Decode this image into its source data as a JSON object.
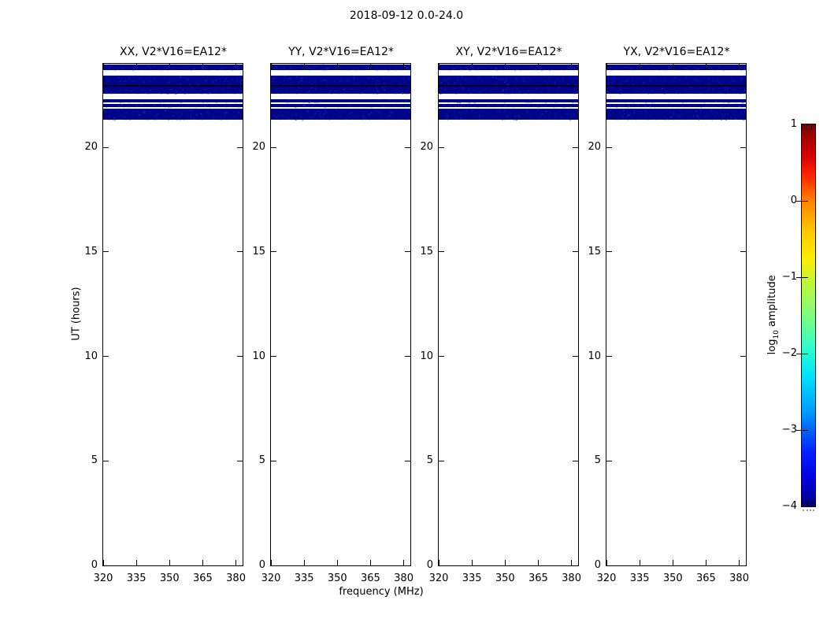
{
  "figure": {
    "title": "2018-09-12 0.0-24.0",
    "xlabel": "frequency (MHz)",
    "ylabel": "UT (hours)",
    "colorbar_label": {
      "pre": "log",
      "sub": "10",
      "post": " amplitude"
    }
  },
  "panels": [
    {
      "title": "XX, V2*V16=EA12*"
    },
    {
      "title": "YY, V2*V16=EA12*"
    },
    {
      "title": "XY, V2*V16=EA12*"
    },
    {
      "title": "YX, V2*V16=EA12*"
    }
  ],
  "axes": {
    "x_ticks": [
      320,
      335,
      350,
      365,
      380
    ],
    "x_range": [
      320,
      383
    ],
    "y_ticks": [
      0,
      5,
      10,
      15,
      20
    ],
    "y_range": [
      0,
      24
    ]
  },
  "colorbar": {
    "tick_labels": [
      "1",
      "0",
      "−1",
      "−2",
      "−3",
      "−4"
    ],
    "tick_values": [
      1,
      0,
      -1,
      -2,
      -3,
      -4
    ],
    "range": [
      -4,
      1
    ],
    "colormap": "jet"
  },
  "chart_data": {
    "type": "heatmap",
    "title": "2018-09-12 0.0-24.0",
    "subplots": [
      {
        "title": "XX, V2*V16=EA12*",
        "polarization": "XX"
      },
      {
        "title": "YY, V2*V16=EA12*",
        "polarization": "YY"
      },
      {
        "title": "XY, V2*V16=EA12*",
        "polarization": "XY"
      },
      {
        "title": "YX, V2*V16=EA12*",
        "polarization": "YX"
      }
    ],
    "xlabel": "frequency (MHz)",
    "ylabel": "UT (hours)",
    "x_ticks_mhz": [
      320,
      335,
      350,
      365,
      380
    ],
    "x_range_mhz": [
      320,
      383
    ],
    "y_range_hours": [
      0,
      24
    ],
    "colorbar": {
      "label": "log10 amplitude",
      "ticks": [
        1,
        0,
        -1,
        -2,
        -3,
        -4
      ],
      "range": [
        -4,
        1
      ],
      "colormap": "jet"
    },
    "data_description": "Dark navy horizontal bands (log10 amplitude near -4) spanning the full frequency range in all four panels between UT ~21.3 and ~24.0, separated by white gaps; remainder of each panel is blank (no data).",
    "data_bands_ut": [
      [
        23.7,
        23.98
      ],
      [
        22.99,
        23.44
      ],
      [
        22.56,
        22.91
      ],
      [
        22.14,
        22.29
      ],
      [
        21.93,
        22.06
      ],
      [
        21.31,
        21.84
      ]
    ],
    "dark_band_ut": [
      22.91,
      22.99
    ],
    "band_color": "#000487",
    "dark_band_color": "#000020",
    "speckle_colors": [
      "#0a0aa0",
      "#1e1eb4",
      "#3232c8",
      "#0a32c8",
      "#4646e6"
    ],
    "approx_amplitude_log10": -4
  }
}
